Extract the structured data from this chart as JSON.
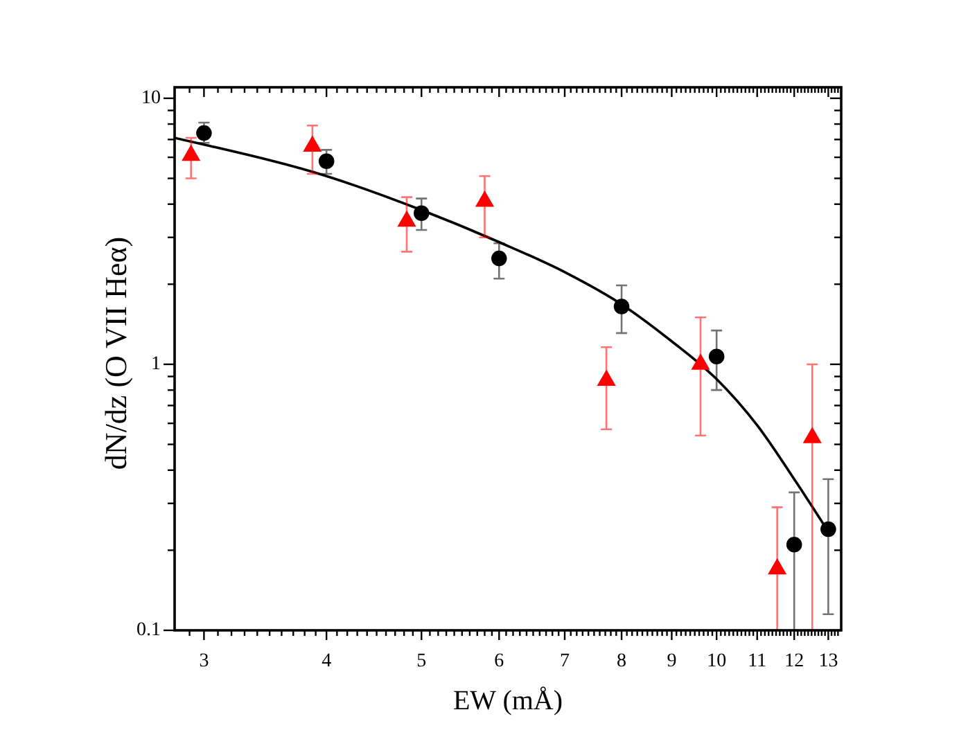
{
  "chart_data": {
    "type": "scatter",
    "xlabel": "EW (mÅ)",
    "ylabel": "dN/dz (O VII Heα)",
    "log": "xy",
    "xlim": [
      2.8,
      13.4
    ],
    "ylim": [
      0.1,
      11
    ],
    "xticks": [
      {
        "value": 2.9,
        "label": null
      },
      3,
      {
        "value": 3.1,
        "label": null
      },
      {
        "value": 3.2,
        "label": null
      },
      {
        "value": 3.3,
        "label": null
      },
      {
        "value": 3.4,
        "label": null
      },
      {
        "value": 3.5,
        "label": null
      },
      {
        "value": 3.6,
        "label": null
      },
      {
        "value": 3.7,
        "label": null
      },
      {
        "value": 3.8,
        "label": null
      },
      {
        "value": 3.9,
        "label": null
      },
      4,
      {
        "value": 4.1,
        "label": null
      },
      {
        "value": 4.2,
        "label": null
      },
      {
        "value": 4.3,
        "label": null
      },
      {
        "value": 4.4,
        "label": null
      },
      {
        "value": 4.5,
        "label": null
      },
      {
        "value": 4.6,
        "label": null
      },
      {
        "value": 4.7,
        "label": null
      },
      {
        "value": 4.8,
        "label": null
      },
      {
        "value": 4.9,
        "label": null
      },
      5,
      {
        "value": 5.1,
        "label": null
      },
      {
        "value": 5.2,
        "label": null
      },
      {
        "value": 5.3,
        "label": null
      },
      {
        "value": 5.4,
        "label": null
      },
      {
        "value": 5.5,
        "label": null
      },
      {
        "value": 5.6,
        "label": null
      },
      {
        "value": 5.7,
        "label": null
      },
      {
        "value": 5.8,
        "label": null
      },
      {
        "value": 5.9,
        "label": null
      },
      6,
      {
        "value": 6.1,
        "label": null
      },
      {
        "value": 6.2,
        "label": null
      },
      {
        "value": 6.3,
        "label": null
      },
      {
        "value": 6.4,
        "label": null
      },
      {
        "value": 6.5,
        "label": null
      },
      {
        "value": 6.6,
        "label": null
      },
      {
        "value": 6.7,
        "label": null
      },
      {
        "value": 6.8,
        "label": null
      },
      {
        "value": 6.9,
        "label": null
      },
      7,
      {
        "value": 7.1,
        "label": null
      },
      {
        "value": 7.2,
        "label": null
      },
      {
        "value": 7.3,
        "label": null
      },
      {
        "value": 7.4,
        "label": null
      },
      {
        "value": 7.5,
        "label": null
      },
      {
        "value": 7.6,
        "label": null
      },
      {
        "value": 7.7,
        "label": null
      },
      {
        "value": 7.8,
        "label": null
      },
      {
        "value": 7.9,
        "label": null
      },
      8,
      {
        "value": 8.1,
        "label": null
      },
      {
        "value": 8.2,
        "label": null
      },
      {
        "value": 8.3,
        "label": null
      },
      {
        "value": 8.4,
        "label": null
      },
      {
        "value": 8.5,
        "label": null
      },
      {
        "value": 8.6,
        "label": null
      },
      {
        "value": 8.7,
        "label": null
      },
      {
        "value": 8.8,
        "label": null
      },
      {
        "value": 8.9,
        "label": null
      },
      9,
      {
        "value": 9.1,
        "label": null
      },
      {
        "value": 9.2,
        "label": null
      },
      {
        "value": 9.3,
        "label": null
      },
      {
        "value": 9.4,
        "label": null
      },
      {
        "value": 9.5,
        "label": null
      },
      {
        "value": 9.6,
        "label": null
      },
      {
        "value": 9.7,
        "label": null
      },
      {
        "value": 9.8,
        "label": null
      },
      {
        "value": 9.9,
        "label": null
      },
      10,
      {
        "value": 10.1,
        "label": null
      },
      {
        "value": 10.2,
        "label": null
      },
      {
        "value": 10.3,
        "label": null
      },
      {
        "value": 10.4,
        "label": null
      },
      {
        "value": 10.5,
        "label": null
      },
      {
        "value": 10.6,
        "label": null
      },
      {
        "value": 10.7,
        "label": null
      },
      {
        "value": 10.8,
        "label": null
      },
      {
        "value": 10.9,
        "label": null
      },
      11,
      {
        "value": 11.1,
        "label": null
      },
      {
        "value": 11.2,
        "label": null
      },
      {
        "value": 11.3,
        "label": null
      },
      {
        "value": 11.4,
        "label": null
      },
      {
        "value": 11.5,
        "label": null
      },
      {
        "value": 11.6,
        "label": null
      },
      {
        "value": 11.7,
        "label": null
      },
      {
        "value": 11.8,
        "label": null
      },
      {
        "value": 11.9,
        "label": null
      },
      12,
      {
        "value": 12.1,
        "label": null
      },
      {
        "value": 12.2,
        "label": null
      },
      {
        "value": 12.3,
        "label": null
      },
      {
        "value": 12.4,
        "label": null
      },
      {
        "value": 12.5,
        "label": null
      },
      {
        "value": 12.6,
        "label": null
      },
      {
        "value": 12.7,
        "label": null
      },
      {
        "value": 12.8,
        "label": null
      },
      {
        "value": 12.9,
        "label": null
      },
      13,
      {
        "value": 13.1,
        "label": null
      },
      {
        "value": 13.2,
        "label": null
      },
      {
        "value": 13.3,
        "label": null
      }
    ],
    "yticks": [
      0.1,
      {
        "value": 0.2,
        "label": null
      },
      {
        "value": 0.3,
        "label": null
      },
      {
        "value": 0.4,
        "label": null
      },
      {
        "value": 0.5,
        "label": null
      },
      {
        "value": 0.6,
        "label": null
      },
      {
        "value": 0.7,
        "label": null
      },
      {
        "value": 0.8,
        "label": null
      },
      {
        "value": 0.9,
        "label": null
      },
      1,
      {
        "value": 2,
        "label": null
      },
      {
        "value": 3,
        "label": null
      },
      {
        "value": 4,
        "label": null
      },
      {
        "value": 5,
        "label": null
      },
      {
        "value": 6,
        "label": null
      },
      {
        "value": 7,
        "label": null
      },
      {
        "value": 8,
        "label": null
      },
      {
        "value": 9,
        "label": null
      },
      10
    ],
    "series": [
      {
        "type": "line",
        "color": "#000000",
        "x": [
          2.8,
          3,
          4,
          5,
          6,
          7,
          8,
          9,
          10,
          11,
          12,
          13
        ],
        "values": [
          7.1,
          6.7,
          5.1,
          3.8,
          2.88,
          2.22,
          1.68,
          1.22,
          0.88,
          0.59,
          0.37,
          0.235
        ]
      },
      {
        "color": "#000000",
        "marker": "circle",
        "x": [
          3,
          4,
          5,
          6,
          8,
          10,
          12,
          13
        ],
        "values": [
          7.4,
          5.8,
          3.7,
          2.5,
          1.65,
          1.07,
          0.21,
          0.24
        ],
        "errors": [
          [
            6.8,
            8.1
          ],
          [
            5.2,
            6.4
          ],
          [
            3.2,
            4.2
          ],
          [
            2.1,
            2.85
          ],
          [
            1.31,
            1.98
          ],
          [
            0.8,
            1.34
          ],
          [
            0.1,
            0.33
          ],
          [
            0.115,
            0.37
          ]
        ]
      },
      {
        "color": "#ff0000",
        "marker": "triangle",
        "x": [
          2.91,
          3.87,
          4.83,
          5.8,
          7.72,
          9.63,
          11.53,
          12.52
        ],
        "values": [
          6.1,
          6.6,
          3.45,
          4.1,
          0.87,
          1.0,
          0.17,
          0.53
        ],
        "errors": [
          [
            5.0,
            7.1
          ],
          [
            5.2,
            7.9
          ],
          [
            2.65,
            4.25
          ],
          [
            3.0,
            5.1
          ],
          [
            0.57,
            1.16
          ],
          [
            0.54,
            1.5
          ],
          [
            0.1,
            0.29
          ],
          [
            0.1,
            1.0
          ]
        ]
      }
    ]
  }
}
